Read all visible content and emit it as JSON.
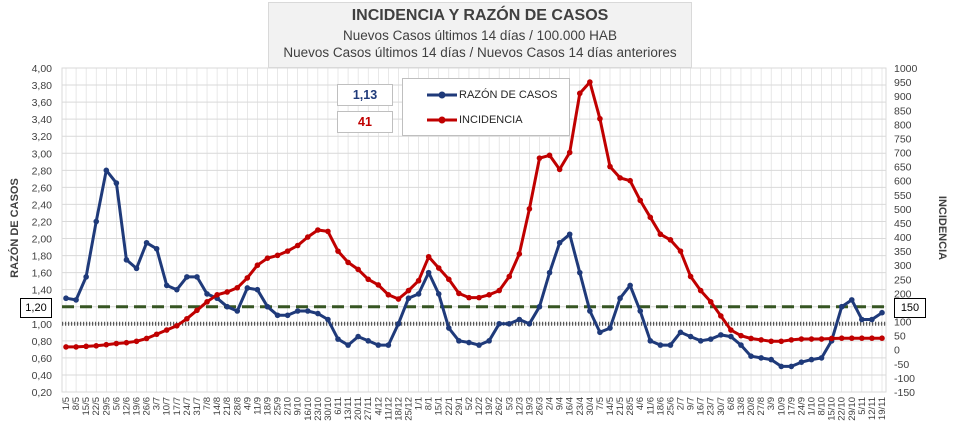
{
  "header": {
    "title": "INCIDENCIA Y RAZÓN DE CASOS",
    "subtitle1": "Nuevos Casos últimos 14 días / 100.000 HAB",
    "subtitle2": "Nuevos Casos últimos 14 días / Nuevos Casos 14 días anteriores"
  },
  "current_values": {
    "razon": "1,13",
    "incidencia": "41"
  },
  "reference_lines": {
    "razon_label": "1,20",
    "incidencia_label": "150"
  },
  "colors": {
    "razon": "#1f3a7a",
    "incidencia": "#c00000",
    "threshold": "#375623",
    "grid": "#d9d9d9",
    "baseline": "#595959"
  },
  "chart_data": {
    "type": "line",
    "grid": true,
    "legend_position": "top-center",
    "x_ticks": [
      "1/5",
      "8/5",
      "15/5",
      "22/5",
      "29/5",
      "5/6",
      "12/6",
      "19/6",
      "26/6",
      "3/7",
      "10/7",
      "17/7",
      "24/7",
      "31/7",
      "7/8",
      "14/8",
      "21/8",
      "28/8",
      "4/9",
      "11/9",
      "18/9",
      "25/9",
      "2/10",
      "9/10",
      "16/10",
      "23/10",
      "30/10",
      "6/11",
      "13/11",
      "20/11",
      "27/11",
      "4/12",
      "11/12",
      "18/12",
      "25/12",
      "1/1",
      "8/1",
      "15/1",
      "22/1",
      "29/1",
      "5/2",
      "12/2",
      "19/2",
      "26/2",
      "5/3",
      "12/3",
      "19/3",
      "26/3",
      "2/4",
      "9/4",
      "16/4",
      "23/4",
      "30/4",
      "7/5",
      "14/5",
      "21/5",
      "28/5",
      "4/6",
      "11/6",
      "18/6",
      "25/6",
      "2/7",
      "9/7",
      "16/7",
      "23/7",
      "30/7",
      "6/8",
      "13/8",
      "20/8",
      "27/8",
      "3/9",
      "10/9",
      "17/9",
      "24/9",
      "1/10",
      "8/10",
      "15/10",
      "22/10",
      "29/10",
      "5/11",
      "12/11",
      "19/11"
    ],
    "y_left": {
      "label": "RAZÓN DE CASOS",
      "min": 0.2,
      "max": 4.0,
      "ticks": [
        "0,20",
        "0,40",
        "0,60",
        "0,80",
        "1,00",
        "1,20",
        "1,40",
        "1,60",
        "1,80",
        "2,00",
        "2,20",
        "2,40",
        "2,60",
        "2,80",
        "3,00",
        "3,20",
        "3,40",
        "3,60",
        "3,80",
        "4,00"
      ]
    },
    "y_right": {
      "label": "INCIDENCIA",
      "min": -150,
      "max": 1000,
      "ticks": [
        "-150",
        "-100",
        "-50",
        "0",
        "50",
        "100",
        "150",
        "200",
        "250",
        "300",
        "350",
        "400",
        "450",
        "500",
        "550",
        "600",
        "650",
        "700",
        "750",
        "800",
        "850",
        "900",
        "950",
        "1000"
      ]
    },
    "thresholds": {
      "razon": 1.2,
      "baseline": 1.0
    },
    "series": [
      {
        "name": "RAZÓN DE CASOS",
        "axis": "left",
        "values": [
          1.3,
          1.28,
          1.55,
          2.2,
          2.8,
          2.65,
          1.75,
          1.65,
          1.95,
          1.88,
          1.45,
          1.4,
          1.55,
          1.55,
          1.35,
          1.3,
          1.2,
          1.15,
          1.42,
          1.4,
          1.2,
          1.1,
          1.1,
          1.15,
          1.15,
          1.12,
          1.05,
          0.82,
          0.75,
          0.85,
          0.8,
          0.75,
          0.75,
          1.0,
          1.3,
          1.35,
          1.6,
          1.35,
          0.95,
          0.8,
          0.78,
          0.75,
          0.8,
          1.0,
          1.0,
          1.05,
          1.0,
          1.2,
          1.6,
          1.95,
          2.05,
          1.6,
          1.15,
          0.9,
          0.95,
          1.3,
          1.45,
          1.15,
          0.8,
          0.75,
          0.75,
          0.9,
          0.85,
          0.8,
          0.82,
          0.87,
          0.85,
          0.75,
          0.62,
          0.6,
          0.58,
          0.5,
          0.5,
          0.55,
          0.58,
          0.6,
          0.8,
          1.2,
          1.28,
          1.05,
          1.05,
          1.13
        ]
      },
      {
        "name": "INCIDENCIA",
        "axis": "right",
        "values": [
          10,
          10,
          12,
          14,
          18,
          22,
          25,
          30,
          40,
          55,
          70,
          85,
          110,
          140,
          170,
          195,
          205,
          220,
          255,
          300,
          325,
          335,
          350,
          370,
          400,
          425,
          420,
          350,
          310,
          285,
          250,
          230,
          195,
          180,
          210,
          245,
          330,
          290,
          250,
          200,
          185,
          185,
          195,
          210,
          260,
          340,
          500,
          680,
          690,
          640,
          700,
          910,
          950,
          820,
          650,
          610,
          600,
          530,
          470,
          410,
          390,
          350,
          260,
          210,
          170,
          120,
          70,
          50,
          40,
          35,
          30,
          30,
          35,
          38,
          38,
          38,
          40,
          41,
          41,
          41,
          41,
          41
        ]
      }
    ]
  }
}
